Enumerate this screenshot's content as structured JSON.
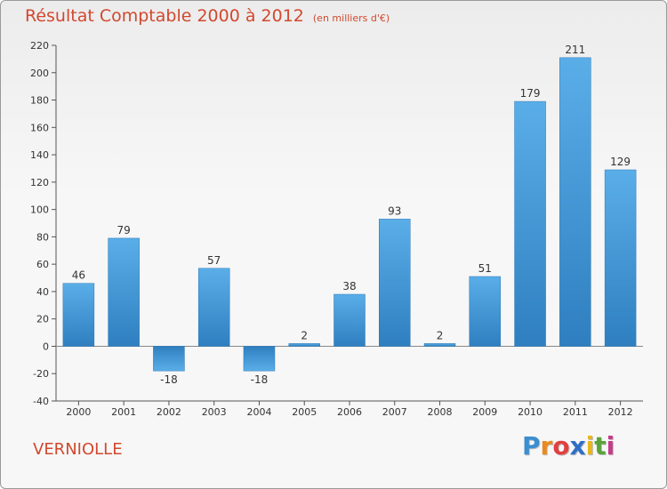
{
  "header": {
    "title": "Résultat Comptable 2000 à 2012",
    "unit": "(en milliers d'€)"
  },
  "place": "VERNIOLLE",
  "logo": {
    "text": "Proxiti",
    "letters": [
      "P",
      "r",
      "o",
      "x",
      "i",
      "t",
      "i"
    ],
    "colors": [
      "#3b8ed0",
      "#e98a1f",
      "#e04040",
      "#2f6fc6",
      "#e8b720",
      "#5aa33a",
      "#c43c8a"
    ]
  },
  "colors": {
    "bar": "#3f97dc",
    "axis": "#555555",
    "grid": "#dddddd",
    "accent": "#d2482e"
  },
  "chart_data": {
    "type": "bar",
    "categories": [
      "2000",
      "2001",
      "2002",
      "2003",
      "2004",
      "2005",
      "2006",
      "2007",
      "2008",
      "2009",
      "2010",
      "2011",
      "2012"
    ],
    "values": [
      46,
      79,
      -18,
      57,
      -18,
      2,
      38,
      93,
      2,
      51,
      179,
      211,
      129
    ],
    "labels": [
      "46",
      "79",
      "-18",
      "57",
      "-18",
      "2",
      "38",
      "93",
      "2",
      "51",
      "179",
      "211",
      "129"
    ],
    "yticks": [
      -40,
      -20,
      0,
      20,
      40,
      60,
      80,
      100,
      120,
      140,
      160,
      180,
      200,
      220
    ],
    "ylim": [
      -40,
      220
    ],
    "grid": false
  }
}
